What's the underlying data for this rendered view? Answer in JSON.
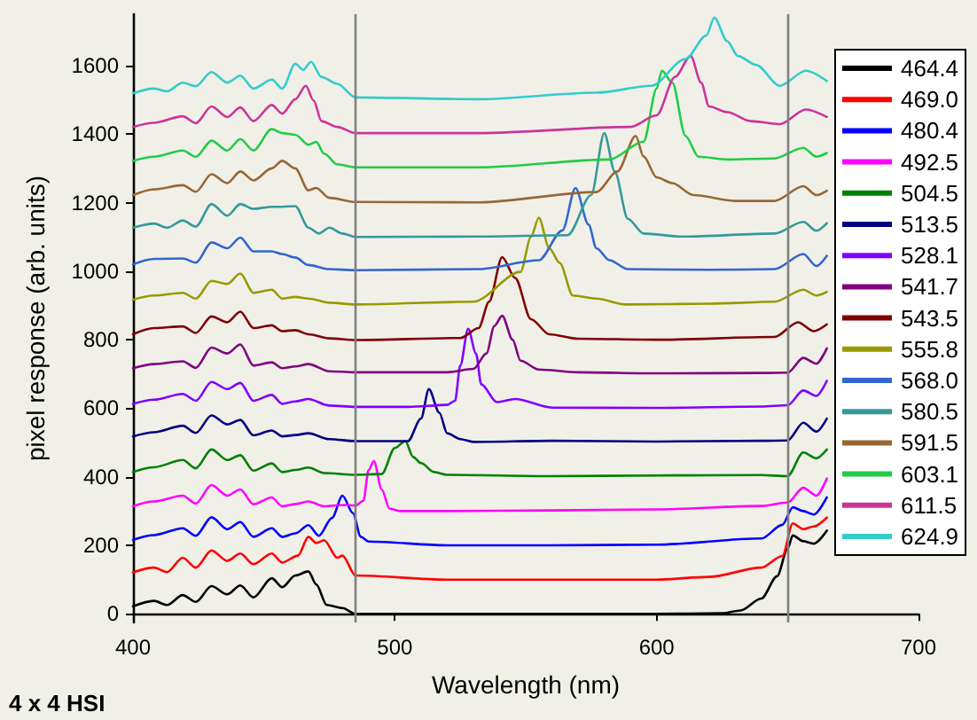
{
  "chart_data": {
    "type": "line",
    "xlabel": "Wavelength (nm)",
    "ylabel": "pixel response (arb. units)",
    "annotations": [
      "4 x 4 HSI"
    ],
    "xlim": [
      400,
      700
    ],
    "xticks": [
      400,
      500,
      600,
      700
    ],
    "ylim": [
      -25,
      1750
    ],
    "yticks": [
      0,
      200,
      400,
      600,
      800,
      1000,
      1200,
      1400,
      1600
    ],
    "grid": false,
    "legend": "top right",
    "marker": "none",
    "line_style": "solid",
    "ref_lines": [
      {
        "axis": "x",
        "value": 485,
        "label": null,
        "color": "#808080"
      },
      {
        "axis": "x",
        "value": 650,
        "label": null,
        "color": "#808080"
      }
    ],
    "series": [
      {
        "name": "464.4",
        "color": "#000000",
        "x": [
          400,
          408,
          413,
          419,
          424,
          430,
          436,
          441,
          446,
          453,
          457,
          462,
          467,
          470,
          474,
          480,
          485,
          520,
          560,
          600,
          625,
          632,
          640,
          646,
          650,
          652,
          656,
          660,
          665
        ],
        "values": [
          22,
          38,
          26,
          55,
          35,
          81,
          57,
          83,
          48,
          104,
          78,
          112,
          124,
          86,
          26,
          17,
          0,
          0,
          0,
          0,
          2,
          10,
          45,
          110,
          190,
          229,
          212,
          205,
          243
        ]
      },
      {
        "name": "469.0",
        "color": "#ff0000",
        "x": [
          400,
          408,
          413,
          419,
          424,
          430,
          436,
          441,
          446,
          453,
          457,
          463,
          467,
          470,
          473,
          478,
          480,
          485,
          520,
          560,
          600,
          620,
          640,
          648,
          652,
          656,
          660,
          665
        ],
        "values": [
          121,
          135,
          122,
          164,
          135,
          185,
          155,
          176,
          145,
          176,
          150,
          170,
          225,
          207,
          215,
          164,
          170,
          112,
          100,
          100,
          100,
          108,
          135,
          169,
          264,
          247,
          255,
          281
        ]
      },
      {
        "name": "480.4",
        "color": "#0000ff",
        "x": [
          400,
          408,
          419,
          424,
          430,
          436,
          441,
          446,
          453,
          457,
          462,
          467,
          471,
          476,
          480,
          484,
          487,
          490,
          520,
          560,
          600,
          640,
          648,
          652,
          656,
          660,
          665
        ],
        "values": [
          216,
          230,
          250,
          228,
          282,
          247,
          268,
          225,
          250,
          225,
          235,
          259,
          228,
          280,
          345,
          294,
          225,
          211,
          200,
          200,
          202,
          220,
          260,
          311,
          300,
          290,
          340
        ]
      },
      {
        "name": "492.5",
        "color": "#ff00ff",
        "x": [
          400,
          408,
          419,
          424,
          430,
          436,
          441,
          446,
          453,
          457,
          462,
          467,
          473,
          480,
          485,
          488,
          490,
          492,
          495,
          498,
          502,
          520,
          560,
          600,
          640,
          650,
          656,
          661,
          665
        ],
        "values": [
          314,
          328,
          345,
          322,
          376,
          345,
          363,
          320,
          340,
          314,
          320,
          328,
          314,
          318,
          316,
          330,
          420,
          446,
          363,
          307,
          300,
          300,
          302,
          305,
          315,
          325,
          368,
          345,
          395
        ]
      },
      {
        "name": "504.5",
        "color": "#008000",
        "x": [
          400,
          408,
          419,
          424,
          430,
          436,
          441,
          446,
          453,
          457,
          462,
          467,
          473,
          485,
          495,
          500,
          504,
          507,
          510,
          515,
          520,
          560,
          600,
          640,
          650,
          656,
          661,
          665
        ],
        "values": [
          414,
          428,
          449,
          425,
          480,
          449,
          463,
          418,
          439,
          414,
          420,
          427,
          411,
          406,
          408,
          484,
          504,
          458,
          440,
          414,
          406,
          402,
          404,
          405,
          402,
          471,
          454,
          480
        ]
      },
      {
        "name": "513.5",
        "color": "#000080",
        "x": [
          400,
          408,
          419,
          424,
          430,
          436,
          441,
          446,
          453,
          457,
          462,
          467,
          475,
          485,
          505,
          510,
          513,
          517,
          520,
          525,
          530,
          560,
          600,
          640,
          650,
          656,
          661,
          665
        ],
        "values": [
          518,
          530,
          549,
          528,
          579,
          553,
          566,
          521,
          535,
          518,
          522,
          527,
          510,
          504,
          504,
          570,
          656,
          587,
          527,
          510,
          502,
          505,
          503,
          505,
          506,
          558,
          532,
          570
        ]
      },
      {
        "name": "528.1",
        "color": "#8000ff",
        "x": [
          400,
          408,
          419,
          424,
          430,
          436,
          441,
          446,
          453,
          457,
          462,
          467,
          475,
          485,
          505,
          520,
          523,
          525,
          528,
          531,
          533,
          539,
          546,
          560,
          600,
          640,
          650,
          656,
          661,
          665
        ],
        "values": [
          613,
          625,
          642,
          622,
          677,
          656,
          674,
          622,
          639,
          613,
          620,
          627,
          608,
          604,
          604,
          610,
          622,
          725,
          832,
          760,
          670,
          618,
          627,
          602,
          601,
          605,
          609,
          652,
          636,
          680
        ]
      },
      {
        "name": "541.7",
        "color": "#800080",
        "x": [
          400,
          408,
          419,
          424,
          430,
          436,
          441,
          446,
          453,
          457,
          462,
          467,
          475,
          485,
          520,
          530,
          535,
          538,
          541,
          545,
          548,
          555,
          570,
          600,
          640,
          650,
          656,
          661,
          665
        ],
        "values": [
          717,
          729,
          737,
          718,
          777,
          760,
          786,
          725,
          734,
          717,
          722,
          729,
          708,
          705,
          705,
          715,
          760,
          840,
          870,
          800,
          739,
          713,
          705,
          702,
          703,
          704,
          747,
          730,
          775
        ]
      },
      {
        "name": "543.5",
        "color": "#800000",
        "x": [
          400,
          408,
          419,
          424,
          430,
          436,
          441,
          446,
          453,
          457,
          462,
          467,
          475,
          485,
          525,
          532,
          536,
          541,
          546,
          552,
          559,
          570,
          600,
          645,
          654,
          660,
          665
        ],
        "values": [
          816,
          834,
          839,
          820,
          868,
          851,
          882,
          834,
          842,
          825,
          828,
          816,
          804,
          799,
          805,
          834,
          911,
          1041,
          980,
          860,
          816,
          803,
          800,
          808,
          851,
          825,
          845
        ]
      },
      {
        "name": "555.8",
        "color": "#999900",
        "x": [
          400,
          408,
          419,
          424,
          430,
          436,
          441,
          446,
          453,
          457,
          462,
          467,
          475,
          485,
          530,
          548,
          552,
          555,
          559,
          563,
          568,
          577,
          588,
          620,
          645,
          656,
          661,
          665
        ],
        "values": [
          917,
          929,
          937,
          920,
          972,
          963,
          993,
          937,
          946,
          920,
          925,
          920,
          908,
          903,
          911,
          998,
          1100,
          1156,
          1067,
          1024,
          929,
          920,
          903,
          905,
          911,
          946,
          929,
          940
        ]
      },
      {
        "name": "568.0",
        "color": "#3366cc",
        "x": [
          400,
          408,
          419,
          424,
          430,
          436,
          441,
          446,
          453,
          457,
          462,
          467,
          475,
          485,
          532,
          555,
          564,
          569,
          574,
          577,
          582,
          589,
          620,
          645,
          656,
          661,
          665
        ],
        "values": [
          1020,
          1036,
          1037,
          1025,
          1084,
          1067,
          1098,
          1058,
          1058,
          1050,
          1040,
          1018,
          1006,
          1003,
          1006,
          1032,
          1119,
          1243,
          1136,
          1067,
          1032,
          1006,
          1004,
          1006,
          1050,
          1015,
          1045
        ]
      },
      {
        "name": "580.5",
        "color": "#339999",
        "x": [
          400,
          408,
          413,
          419,
          424,
          430,
          436,
          441,
          446,
          453,
          457,
          462,
          467,
          471,
          475,
          480,
          485,
          532,
          566,
          575,
          580,
          584,
          589,
          595,
          610,
          645,
          656,
          661,
          665
        ],
        "values": [
          1127,
          1139,
          1127,
          1148,
          1130,
          1196,
          1162,
          1196,
          1182,
          1188,
          1188,
          1190,
          1127,
          1110,
          1127,
          1110,
          1100,
          1101,
          1105,
          1222,
          1403,
          1291,
          1153,
          1110,
          1101,
          1110,
          1144,
          1118,
          1140
        ]
      },
      {
        "name": "591.5",
        "color": "#996633",
        "x": [
          400,
          408,
          419,
          424,
          430,
          436,
          441,
          446,
          453,
          457,
          462,
          467,
          470,
          475,
          485,
          532,
          577,
          585,
          592,
          595,
          600,
          606,
          614,
          630,
          645,
          656,
          661,
          665
        ],
        "values": [
          1222,
          1239,
          1251,
          1232,
          1283,
          1257,
          1291,
          1265,
          1300,
          1322,
          1300,
          1236,
          1243,
          1214,
          1202,
          1201,
          1231,
          1291,
          1395,
          1335,
          1274,
          1257,
          1222,
          1205,
          1205,
          1248,
          1222,
          1235
        ]
      },
      {
        "name": "603.1",
        "color": "#22cc44",
        "x": [
          400,
          408,
          419,
          424,
          430,
          436,
          441,
          446,
          453,
          457,
          462,
          467,
          470,
          473,
          478,
          485,
          532,
          582,
          595,
          600,
          602,
          606,
          611,
          616,
          627,
          645,
          656,
          661,
          665
        ],
        "values": [
          1322,
          1334,
          1352,
          1334,
          1381,
          1352,
          1386,
          1352,
          1415,
          1403,
          1398,
          1369,
          1377,
          1343,
          1312,
          1303,
          1303,
          1326,
          1378,
          1533,
          1585,
          1550,
          1395,
          1334,
          1326,
          1329,
          1360,
          1334,
          1345
        ]
      },
      {
        "name": "611.5",
        "color": "#cc3399",
        "x": [
          400,
          408,
          419,
          424,
          430,
          436,
          441,
          446,
          453,
          457,
          462,
          466,
          469,
          472,
          478,
          485,
          532,
          590,
          600,
          607,
          613,
          617,
          620,
          627,
          636,
          647,
          657,
          665
        ],
        "values": [
          1421,
          1433,
          1452,
          1432,
          1481,
          1450,
          1478,
          1438,
          1485,
          1460,
          1502,
          1541,
          1498,
          1438,
          1421,
          1403,
          1403,
          1421,
          1455,
          1567,
          1628,
          1550,
          1481,
          1464,
          1438,
          1429,
          1472,
          1450
        ]
      },
      {
        "name": "624.9",
        "color": "#33cccc",
        "x": [
          400,
          408,
          413,
          419,
          424,
          430,
          436,
          441,
          446,
          453,
          457,
          462,
          465,
          468,
          472,
          478,
          485,
          532,
          577,
          598,
          611,
          619,
          622,
          627,
          631,
          638,
          647,
          657,
          665
        ],
        "values": [
          1519,
          1533,
          1525,
          1550,
          1540,
          1581,
          1550,
          1571,
          1533,
          1559,
          1533,
          1605,
          1588,
          1611,
          1567,
          1547,
          1507,
          1502,
          1521,
          1541,
          1619,
          1688,
          1740,
          1671,
          1628,
          1602,
          1541,
          1585,
          1555
        ]
      }
    ]
  }
}
